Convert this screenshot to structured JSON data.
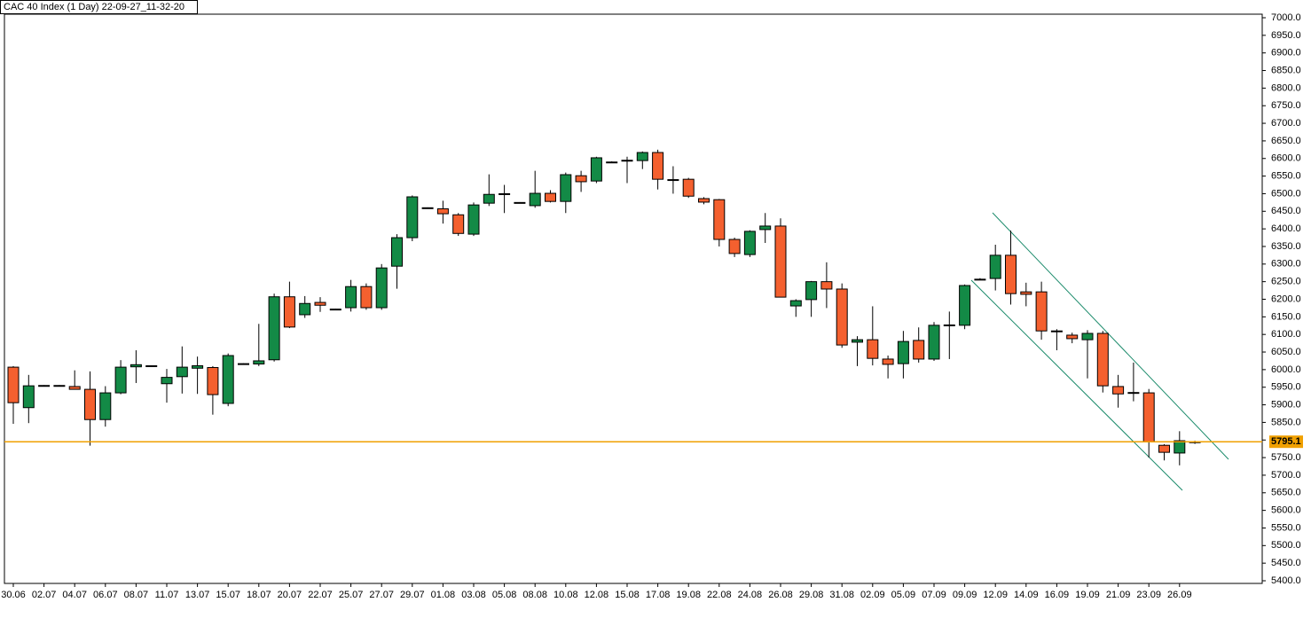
{
  "chart_data": {
    "type": "candlestick",
    "title": "CAC 40 Index (1 Day) 22-09-27_11-32-20",
    "categories": [
      "30.06",
      null,
      "02.07",
      null,
      "04.07",
      null,
      "06.07",
      null,
      "08.07",
      null,
      "11.07",
      null,
      "13.07",
      null,
      "15.07",
      null,
      "18.07",
      null,
      "20.07",
      null,
      "22.07",
      null,
      "25.07",
      null,
      "27.07",
      null,
      "29.07",
      null,
      "01.08",
      null,
      "03.08",
      null,
      "05.08",
      null,
      "08.08",
      null,
      "10.08",
      null,
      "12.08",
      null,
      "15.08",
      null,
      "17.08",
      null,
      "19.08",
      null,
      "22.08",
      null,
      "24.08",
      null,
      "26.08",
      null,
      "29.08",
      null,
      "31.08",
      null,
      "02.09",
      null,
      "05.09",
      null,
      "07.09",
      null,
      "09.09",
      null,
      "12.09",
      null,
      "14.09",
      null,
      "16.09",
      null,
      "19.09",
      null,
      "21.09",
      null,
      "23.09",
      null,
      "26.09",
      null
    ],
    "open": [
      6007,
      5892,
      5955,
      5955,
      5952,
      5944,
      5858,
      5934,
      6008,
      6011,
      5960,
      5980,
      6004,
      6006,
      5904,
      6017,
      6016,
      6028,
      6207,
      6156,
      6191,
      6172,
      6176,
      6236,
      6176,
      6294,
      6375,
      6460,
      6457,
      6440,
      6385,
      6473,
      6500,
      6475,
      6466,
      6501,
      6478,
      6551,
      6536,
      6590,
      6595,
      6594,
      6617,
      6540,
      6541,
      6486,
      6483,
      6370,
      6327,
      6398,
      6408,
      6181,
      6199,
      6250,
      6229,
      6078,
      6085,
      6030,
      6017,
      6083,
      6030,
      6127,
      6126,
      6257,
      6259,
      6325,
      6221,
      6221,
      6110,
      6098,
      6085,
      6103,
      5952,
      5935,
      5934,
      5785,
      5763,
      5795
    ],
    "high": [
      6010,
      5985,
      5956,
      5956,
      5998,
      5995,
      5953,
      6027,
      6055,
      6012,
      6002,
      6066,
      6037,
      6010,
      6046,
      6018,
      6130,
      6216,
      6250,
      6209,
      6206,
      6173,
      6255,
      6245,
      6300,
      6385,
      6495,
      6461,
      6480,
      6445,
      6475,
      6555,
      6525,
      6476,
      6565,
      6510,
      6560,
      6565,
      6605,
      6592,
      6605,
      6620,
      6625,
      6578,
      6545,
      6490,
      6485,
      6375,
      6396,
      6445,
      6430,
      6200,
      6252,
      6305,
      6245,
      6095,
      6180,
      6040,
      6110,
      6120,
      6135,
      6165,
      6242,
      6260,
      6355,
      6395,
      6247,
      6250,
      6115,
      6105,
      6112,
      6110,
      5985,
      6020,
      5945,
      5788,
      5825,
      5798
    ],
    "low": [
      5846,
      5848,
      5954,
      5954,
      5943,
      5784,
      5838,
      5930,
      5962,
      6010,
      5906,
      5932,
      5931,
      5872,
      5896,
      6016,
      6010,
      6023,
      6118,
      6147,
      6164,
      6171,
      6165,
      6170,
      6170,
      6230,
      6365,
      6459,
      6415,
      6380,
      6380,
      6465,
      6445,
      6474,
      6460,
      6475,
      6445,
      6505,
      6530,
      6588,
      6530,
      6570,
      6512,
      6500,
      6488,
      6470,
      6350,
      6320,
      6320,
      6360,
      6205,
      6150,
      6150,
      6175,
      6062,
      6010,
      6012,
      5975,
      5975,
      6020,
      6025,
      6030,
      6115,
      6255,
      6225,
      6185,
      6180,
      6085,
      6055,
      6075,
      5975,
      5935,
      5892,
      5910,
      5750,
      5742,
      5728,
      5789
    ],
    "close": [
      5906,
      5954,
      5955,
      5955,
      5944,
      5858,
      5934,
      6007,
      6014,
      6011,
      5978,
      6007,
      6011,
      5929,
      6040,
      6017,
      6025,
      6207,
      6121,
      6188,
      6183,
      6172,
      6236,
      6176,
      6289,
      6375,
      6491,
      6460,
      6443,
      6387,
      6468,
      6498,
      6500,
      6475,
      6501,
      6478,
      6554,
      6534,
      6602,
      6590,
      6595,
      6617,
      6541,
      6540,
      6493,
      6476,
      6370,
      6330,
      6393,
      6408,
      6206,
      6196,
      6250,
      6229,
      6070,
      6085,
      6032,
      6015,
      6080,
      6030,
      6126,
      6127,
      6239,
      6257,
      6325,
      6216,
      6214,
      6110,
      6110,
      6088,
      6103,
      5954,
      5931,
      5935,
      5795,
      5765,
      5798,
      5795
    ],
    "up_color": "#138a46",
    "down_color": "#f4602f",
    "price_line": 5795.1,
    "price_line_color": "#f0a000",
    "ylim": [
      5400,
      7000
    ],
    "yticks": [
      {
        "value": 5400,
        "label": "5400.0"
      },
      {
        "value": 5450,
        "label": "5450.0"
      },
      {
        "value": 5500,
        "label": "5500.0"
      },
      {
        "value": 5550,
        "label": "5550.0"
      },
      {
        "value": 5600,
        "label": "5600.0"
      },
      {
        "value": 5650,
        "label": "5650.0"
      },
      {
        "value": 5700,
        "label": "5700.0"
      },
      {
        "value": 5750,
        "label": "5750.0"
      },
      {
        "value": 5800,
        "label": "5800.0"
      },
      {
        "value": 5850,
        "label": "5850.0"
      },
      {
        "value": 5900,
        "label": "5900.0"
      },
      {
        "value": 5950,
        "label": "5950.0"
      },
      {
        "value": 6000,
        "label": "6000.0"
      },
      {
        "value": 6050,
        "label": "6050.0"
      },
      {
        "value": 6100,
        "label": "6100.0"
      },
      {
        "value": 6150,
        "label": "6150.0"
      },
      {
        "value": 6200,
        "label": "6200.0"
      },
      {
        "value": 6250,
        "label": "6250.0"
      },
      {
        "value": 6300,
        "label": "6300.0"
      },
      {
        "value": 6350,
        "label": "6350.0"
      },
      {
        "value": 6400,
        "label": "6400.0"
      },
      {
        "value": 6450,
        "label": "6450.0"
      },
      {
        "value": 6500,
        "label": "6500.0"
      },
      {
        "value": 6550,
        "label": "6550.0"
      },
      {
        "value": 6600,
        "label": "6600.0"
      },
      {
        "value": 6650,
        "label": "6650.0"
      },
      {
        "value": 6700,
        "label": "6700.0"
      },
      {
        "value": 6750,
        "label": "6750.0"
      },
      {
        "value": 6800,
        "label": "6800.0"
      },
      {
        "value": 6850,
        "label": "6850.0"
      },
      {
        "value": 6900,
        "label": "6900.0"
      },
      {
        "value": 6950,
        "label": "6950.0"
      },
      {
        "value": 7000,
        "label": "7000.0"
      }
    ]
  }
}
